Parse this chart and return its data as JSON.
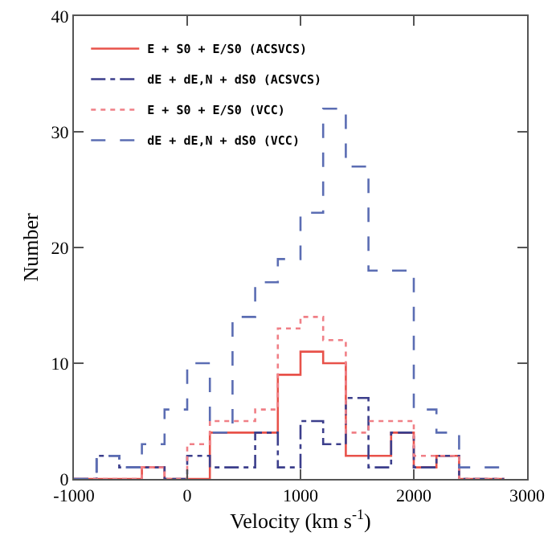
{
  "chart_data": {
    "type": "histogram",
    "xlabel": "Velocity (km s$^{-1}$)",
    "ylabel": "Number",
    "bins": [
      -1000,
      -800,
      -600,
      -400,
      -200,
      0,
      200,
      400,
      600,
      800,
      1000,
      1200,
      1400,
      1600,
      1800,
      2000,
      2200,
      2400,
      2600,
      2800
    ],
    "series": [
      {
        "name": "E + S0 + E/S0 (ACSVCS)",
        "color": "#e8524a",
        "line_style": "solid",
        "values": [
          0,
          0,
          0,
          1,
          0,
          0,
          4,
          4,
          4,
          9,
          11,
          10,
          2,
          2,
          4,
          1,
          2,
          0,
          0
        ]
      },
      {
        "name": "dE + dE,N + dS0 (ACSVCS)",
        "color": "#3c3f8c",
        "line_style": "dashdot",
        "values": [
          0,
          2,
          1,
          1,
          0,
          2,
          1,
          1,
          4,
          1,
          5,
          3,
          7,
          1,
          4,
          1,
          2,
          0,
          0
        ]
      },
      {
        "name": "E + S0 + E/S0 (VCC)",
        "color": "#f07f86",
        "line_style": "dotted",
        "values": [
          0,
          0,
          0,
          1,
          0,
          3,
          5,
          5,
          6,
          13,
          14,
          12,
          4,
          5,
          5,
          2,
          2,
          0,
          0
        ]
      },
      {
        "name": "dE + dE,N + dS0 (VCC)",
        "color": "#5b6db3",
        "line_style": "dashed",
        "values": [
          0,
          2,
          1,
          3,
          6,
          10,
          4,
          14,
          17,
          19,
          23,
          32,
          27,
          18,
          18,
          6,
          4,
          1,
          1
        ]
      }
    ],
    "xlim": [
      -1000,
      3000
    ],
    "xticks": [
      -1000,
      0,
      1000,
      2000,
      3000
    ],
    "ylim": [
      0,
      40
    ],
    "yticks": [
      0,
      10,
      20,
      30,
      40
    ],
    "grid": false,
    "legend": "top left"
  }
}
